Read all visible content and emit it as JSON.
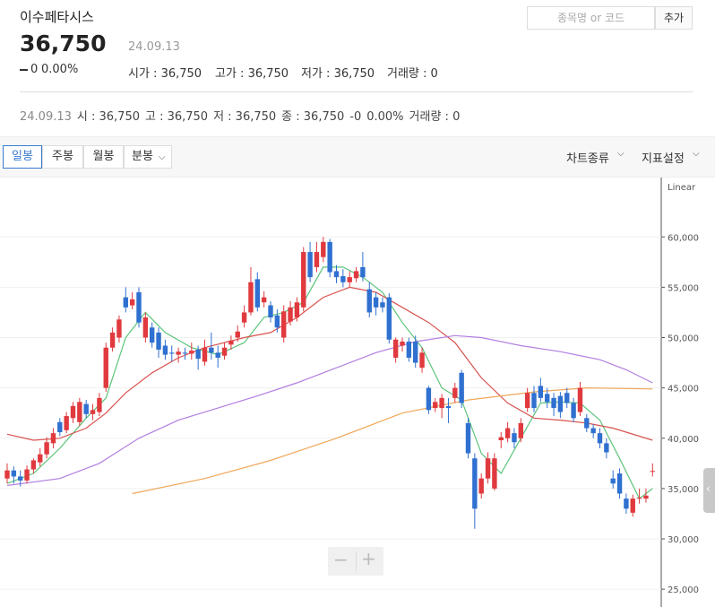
{
  "header": {
    "name": "이수페타시스",
    "price": "36,750",
    "date": "24.09.13",
    "change": "0",
    "change_pct": "0.00%",
    "stats": [
      "시가 : 36,750",
      "고가 : 36,750",
      "저가 : 36,750",
      "거래량 : 0"
    ]
  },
  "search": {
    "placeholder": "종목명 or 코드",
    "button": "추가"
  },
  "summary": {
    "date": "24.09.13",
    "items": [
      "시 : 36,750",
      "고 : 36,750",
      "저 : 36,750",
      "종 : 36,750",
      "-0",
      "0.00%",
      "거래량 : 0"
    ]
  },
  "tabs": [
    "일봉",
    "주봉",
    "월봉",
    "분봉"
  ],
  "menus": [
    "차트종류",
    "지표설정"
  ],
  "chart_data": {
    "type": "candlestick",
    "scale_label": "Linear",
    "ylim": [
      24300,
      65100
    ],
    "yticks": [
      {
        "value": 25000,
        "label": "25,000"
      },
      {
        "value": 30000,
        "label": "30,000"
      },
      {
        "value": 35000,
        "label": "35,000"
      },
      {
        "value": 40000,
        "label": "40,000"
      },
      {
        "value": 45000,
        "label": "45,000"
      },
      {
        "value": 50000,
        "label": "50,000"
      },
      {
        "value": 55000,
        "label": "55,000"
      },
      {
        "value": 60000,
        "label": "60,000"
      }
    ],
    "grid": true,
    "up_color": "#e0393e",
    "down_color": "#2f70d0",
    "open": [
      36000,
      36800,
      36200,
      35800,
      36900,
      37600,
      38400,
      39500,
      41600,
      40800,
      42000,
      41600,
      43400,
      42400,
      42600,
      45000,
      49000,
      50000,
      54000,
      53200,
      54500,
      50000,
      51000,
      50500,
      49200,
      48500,
      48300,
      48500,
      48400,
      48800,
      47600,
      49000,
      48500,
      48200,
      49300,
      50000,
      51500,
      52500,
      55800,
      53500,
      53200,
      52200,
      50000,
      51600,
      52000,
      53000,
      58500,
      57000,
      58000,
      59500,
      56600,
      56100,
      55500,
      55900,
      57000,
      54800,
      54000,
      53500,
      54000,
      48000,
      49200,
      49600,
      49600,
      47000,
      45000,
      43000,
      43000,
      43200,
      44000,
      46500,
      41500,
      38000,
      34500,
      36000,
      35000,
      39800,
      40000,
      40500,
      40000,
      43000,
      44500,
      45200,
      44400,
      44000,
      44200,
      44500,
      43500,
      42600,
      42000,
      41000,
      40500,
      39500,
      36000,
      36500,
      34000,
      32600,
      34000,
      34000,
      36750
    ],
    "high": [
      37500,
      37200,
      36800,
      37300,
      38000,
      39000,
      40100,
      41000,
      42000,
      42600,
      43600,
      44000,
      43800,
      43400,
      44500,
      49500,
      51000,
      52200,
      55000,
      54500,
      55000,
      52500,
      51500,
      51000,
      49800,
      49200,
      49000,
      49000,
      49500,
      49200,
      49800,
      50500,
      49200,
      49500,
      50200,
      51200,
      53200,
      57000,
      56500,
      54600,
      53600,
      52800,
      53200,
      53600,
      54000,
      59000,
      59500,
      59500,
      60000,
      59800,
      57200,
      56800,
      56600,
      57000,
      58500,
      55500,
      54500,
      54000,
      54400,
      50000,
      50000,
      50000,
      50200,
      49000,
      45200,
      44000,
      44400,
      44000,
      45500,
      46800,
      42000,
      38500,
      36500,
      38600,
      38500,
      40600,
      41600,
      41000,
      42000,
      45000,
      45200,
      46000,
      45000,
      44500,
      44600,
      45000,
      44000,
      45600,
      42400,
      41400,
      41000,
      40000,
      36800,
      37000,
      34500,
      34400,
      35000,
      35000,
      37500
    ],
    "low": [
      35500,
      35500,
      35200,
      35500,
      36500,
      37200,
      38000,
      39000,
      40200,
      40500,
      41500,
      41200,
      42000,
      41800,
      42200,
      44600,
      48600,
      49500,
      52500,
      52800,
      51000,
      49500,
      49000,
      48000,
      47800,
      47600,
      47500,
      47800,
      47800,
      46800,
      47200,
      47800,
      47000,
      47800,
      48800,
      49600,
      51000,
      52200,
      52600,
      53000,
      51500,
      50500,
      49500,
      51200,
      51600,
      52600,
      55500,
      56500,
      57500,
      56000,
      55400,
      55000,
      55000,
      55500,
      55600,
      52000,
      52200,
      52500,
      49400,
      47500,
      48600,
      47600,
      47000,
      46500,
      42400,
      42600,
      42000,
      41500,
      43500,
      43000,
      38000,
      31000,
      34000,
      35500,
      34800,
      39000,
      39600,
      39000,
      39600,
      42600,
      42600,
      43600,
      43000,
      42200,
      42000,
      43000,
      41600,
      42200,
      40600,
      40000,
      39000,
      38000,
      35000,
      34000,
      32500,
      32200,
      33500,
      33600,
      36200
    ],
    "close": [
      36800,
      36200,
      35800,
      36900,
      37800,
      38400,
      39600,
      40500,
      40600,
      42200,
      43200,
      43600,
      42400,
      42800,
      44000,
      49000,
      50500,
      51800,
      53000,
      53800,
      51500,
      52000,
      49500,
      48800,
      48300,
      48400,
      48600,
      48400,
      48700,
      47900,
      49000,
      48500,
      48000,
      49000,
      49700,
      50600,
      52500,
      55500,
      53000,
      54000,
      52000,
      51000,
      52600,
      53000,
      53500,
      58500,
      56000,
      58500,
      59500,
      56500,
      56000,
      55500,
      56000,
      56600,
      56000,
      52500,
      53000,
      53000,
      49800,
      49800,
      49600,
      48000,
      47500,
      48500,
      42800,
      43600,
      44000,
      43000,
      45000,
      43500,
      38500,
      33000,
      36000,
      38000,
      38000,
      40100,
      41000,
      39600,
      41500,
      44500,
      43000,
      44000,
      43600,
      43000,
      42600,
      43500,
      42000,
      45000,
      41000,
      40500,
      39500,
      38600,
      35500,
      34500,
      33000,
      34000,
      34100,
      34300,
      36750
    ],
    "lines": [
      {
        "color": "#5cc47a",
        "x": [
          0,
          4,
          8,
          12,
          15,
          18,
          21,
          24,
          28,
          32,
          36,
          39,
          42,
          45,
          48,
          51,
          54,
          57,
          60,
          63,
          66,
          69,
          72,
          75,
          78,
          81,
          84,
          87,
          90,
          93,
          96,
          98
        ],
        "values": [
          35500,
          36500,
          39000,
          42000,
          44000,
          50000,
          52500,
          50500,
          49000,
          48300,
          49500,
          52000,
          52500,
          53500,
          57000,
          57000,
          56000,
          54500,
          51500,
          49000,
          45000,
          43800,
          38500,
          36500,
          40000,
          43500,
          43600,
          43500,
          41800,
          38000,
          34000,
          35000
        ]
      },
      {
        "color": "#d9534f",
        "x": [
          0,
          4,
          8,
          12,
          15,
          18,
          22,
          26,
          30,
          36,
          40,
          44,
          48,
          52,
          56,
          60,
          64,
          68,
          72,
          76,
          80,
          84,
          88,
          92,
          98
        ],
        "values": [
          40400,
          39800,
          40000,
          41000,
          42500,
          44500,
          46500,
          48000,
          49000,
          50000,
          50500,
          52000,
          54000,
          55000,
          54500,
          53000,
          51500,
          49500,
          46000,
          43500,
          42000,
          41800,
          41500,
          41000,
          39800
        ]
      },
      {
        "color": "#b27fe0",
        "x": [
          0,
          8,
          14,
          20,
          26,
          32,
          38,
          44,
          50,
          56,
          62,
          68,
          72,
          78,
          84,
          90,
          94,
          98
        ],
        "values": [
          35300,
          36000,
          37500,
          40000,
          41800,
          43000,
          44200,
          45500,
          47000,
          48500,
          49600,
          50200,
          50000,
          49200,
          48600,
          47800,
          46800,
          45500
        ]
      },
      {
        "color": "#f0a75a",
        "x": [
          19,
          30,
          40,
          50,
          60,
          70,
          80,
          88,
          98
        ],
        "values": [
          34500,
          36000,
          37800,
          40000,
          42500,
          43800,
          44600,
          45000,
          44900
        ]
      }
    ]
  }
}
